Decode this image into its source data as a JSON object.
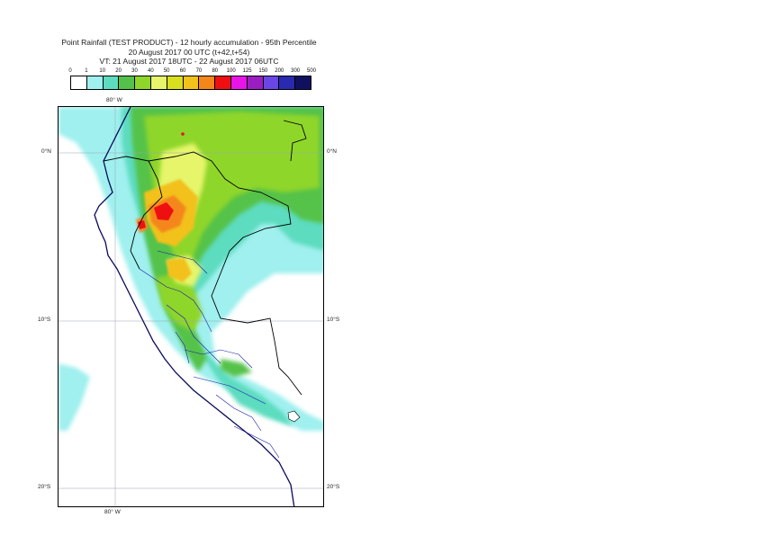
{
  "title": {
    "line1": "Point Rainfall (TEST PRODUCT) - 12 hourly accumulation - 95th Percentile",
    "line2": "20 August 2017 00 UTC (t+42,t+54)",
    "line3": "VT: 21 August 2017 18UTC - 22 August 2017 06UTC"
  },
  "legend": {
    "labels": [
      "0",
      "1",
      "10",
      "20",
      "30",
      "40",
      "50",
      "60",
      "70",
      "80",
      "100",
      "125",
      "150",
      "200",
      "300",
      "500"
    ],
    "colors": [
      "#ffffff",
      "#9ff0ee",
      "#5ddcc0",
      "#54c24a",
      "#8fd62a",
      "#e6f56a",
      "#d8df1e",
      "#f2c11a",
      "#f4861a",
      "#ee1010",
      "#e814e8",
      "#9b1ec2",
      "#6a46e6",
      "#2a2ab0",
      "#101060"
    ]
  },
  "map": {
    "lon_top_label": "80° W",
    "lon_bottom_label": "80° W",
    "lat_labels": {
      "eq_left": "0°N",
      "eq_right": "0°N",
      "s10_left": "10°S",
      "s10_right": "10°S",
      "s20_left": "20°S",
      "s20_right": "20°S"
    }
  }
}
